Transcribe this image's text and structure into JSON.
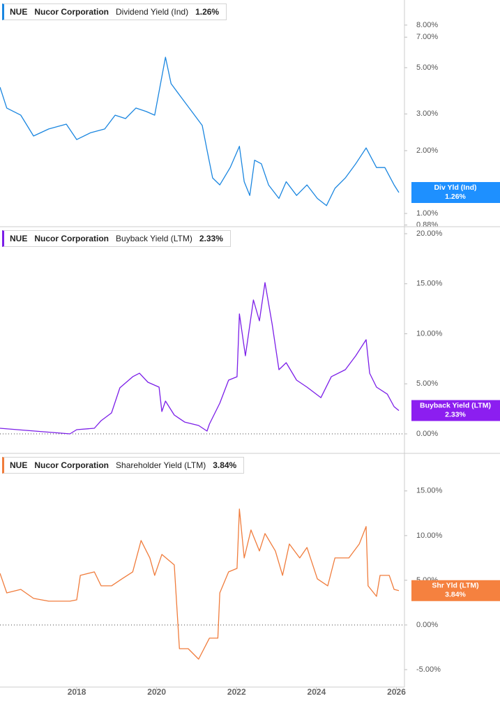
{
  "chart_data": [
    {
      "type": "line",
      "ticker": "NUE",
      "company": "Nucor Corporation",
      "log_scale": true,
      "zero_line": false,
      "xlim": [
        2016.08,
        2026.2
      ],
      "ylim": [
        0.864,
        10.55
      ],
      "yticks": [
        {
          "value": 0.88,
          "label": "0.88%"
        },
        {
          "value": 1,
          "label": "1.00%"
        },
        {
          "value": 2,
          "label": "2.00%"
        },
        {
          "value": 3,
          "label": "3.00%"
        },
        {
          "value": 5,
          "label": "5.00%"
        },
        {
          "value": 7,
          "label": "7.00%"
        },
        {
          "value": 8,
          "label": "8.00%"
        }
      ],
      "x": [
        2016.08,
        2016.25,
        2016.6,
        2016.92,
        2017.3,
        2017.74,
        2018.0,
        2018.35,
        2018.7,
        2018.96,
        2019.22,
        2019.48,
        2019.74,
        2019.95,
        2020.22,
        2020.36,
        2020.62,
        2020.88,
        2021.14,
        2021.26,
        2021.4,
        2021.58,
        2021.84,
        2022.07,
        2022.19,
        2022.33,
        2022.45,
        2022.62,
        2022.8,
        2023.06,
        2023.24,
        2023.5,
        2023.76,
        2024.02,
        2024.25,
        2024.46,
        2024.72,
        2024.98,
        2025.24,
        2025.5,
        2025.71,
        2025.94,
        2026.06
      ],
      "series": [
        {
          "name": "Dividend Yield (Ind)",
          "short_name": "Div Yld (Ind)",
          "current_label": "1.26%",
          "color": "#1a86e0",
          "label_color": "#1e90ff",
          "values": [
            4.03,
            3.2,
            2.96,
            2.35,
            2.54,
            2.68,
            2.26,
            2.44,
            2.54,
            2.96,
            2.85,
            3.2,
            3.08,
            2.96,
            5.61,
            4.19,
            3.59,
            3.08,
            2.64,
            2.01,
            1.48,
            1.37,
            1.66,
            2.1,
            1.42,
            1.22,
            1.8,
            1.73,
            1.37,
            1.18,
            1.42,
            1.22,
            1.37,
            1.18,
            1.09,
            1.32,
            1.48,
            1.73,
            2.06,
            1.66,
            1.66,
            1.37,
            1.26
          ]
        }
      ]
    },
    {
      "type": "line",
      "ticker": "NUE",
      "company": "Nucor Corporation",
      "log_scale": false,
      "zero_line": true,
      "xlim": [
        2016.08,
        2026.2
      ],
      "ylim": [
        -1.95,
        20.7
      ],
      "yticks": [
        {
          "value": 0,
          "label": "0.00%"
        },
        {
          "value": 5,
          "label": "5.00%"
        },
        {
          "value": 10,
          "label": "10.00%"
        },
        {
          "value": 15,
          "label": "15.00%"
        },
        {
          "value": 20,
          "label": "20.00%"
        }
      ],
      "x": [
        2016.08,
        2016.95,
        2017.83,
        2018.0,
        2018.44,
        2018.61,
        2018.87,
        2019.08,
        2019.4,
        2019.57,
        2019.78,
        2020.06,
        2020.13,
        2020.22,
        2020.44,
        2020.7,
        2021.05,
        2021.26,
        2021.32,
        2021.58,
        2021.8,
        2022.01,
        2022.07,
        2022.22,
        2022.42,
        2022.57,
        2022.71,
        2022.89,
        2023.06,
        2023.24,
        2023.5,
        2023.76,
        2024.11,
        2024.37,
        2024.72,
        2024.98,
        2025.24,
        2025.33,
        2025.5,
        2025.77,
        2025.94,
        2026.06
      ],
      "series": [
        {
          "name": "Buyback Yield (LTM)",
          "short_name": "Buyback Yield (LTM)",
          "current_label": "2.33%",
          "color": "#7b1ee8",
          "label_color": "#8c1ef0",
          "values": [
            0.56,
            0.28,
            0,
            0.42,
            0.56,
            1.32,
            2.09,
            4.6,
            5.71,
            6.06,
            5.16,
            4.67,
            2.23,
            3.28,
            1.88,
            1.18,
            0.84,
            0.28,
            0.98,
            3.07,
            5.37,
            5.71,
            11.99,
            7.8,
            13.38,
            11.29,
            15.12,
            10.94,
            6.41,
            7.11,
            5.37,
            4.67,
            3.62,
            5.71,
            6.41,
            7.8,
            9.41,
            6.06,
            4.67,
            3.97,
            2.72,
            2.33
          ]
        }
      ]
    },
    {
      "type": "line",
      "ticker": "NUE",
      "company": "Nucor Corporation",
      "log_scale": false,
      "zero_line": true,
      "xlim": [
        2016.08,
        2026.2
      ],
      "ylim": [
        -6.95,
        19.2
      ],
      "xticks": [
        2018,
        2020,
        2022,
        2024,
        2026
      ],
      "yticks": [
        {
          "value": -5,
          "label": "-5.00%"
        },
        {
          "value": 0,
          "label": "0.00%"
        },
        {
          "value": 5,
          "label": "5.00%"
        },
        {
          "value": 10,
          "label": "10.00%"
        },
        {
          "value": 15,
          "label": "15.00%"
        }
      ],
      "x": [
        2016.08,
        2016.25,
        2016.6,
        2016.92,
        2017.3,
        2017.83,
        2018.0,
        2018.09,
        2018.44,
        2018.61,
        2018.87,
        2019.13,
        2019.4,
        2019.61,
        2019.83,
        2019.95,
        2020.13,
        2020.44,
        2020.57,
        2020.79,
        2021.05,
        2021.32,
        2021.53,
        2021.58,
        2021.8,
        2022.01,
        2022.07,
        2022.19,
        2022.36,
        2022.57,
        2022.71,
        2022.97,
        2023.15,
        2023.32,
        2023.58,
        2023.76,
        2024.02,
        2024.28,
        2024.46,
        2024.81,
        2025.07,
        2025.24,
        2025.29,
        2025.5,
        2025.59,
        2025.82,
        2025.94,
        2026.06
      ],
      "series": [
        {
          "name": "Shareholder Yield (LTM)",
          "short_name": "Shr Yld (LTM)",
          "current_label": "3.84%",
          "color": "#f07c3c",
          "label_color": "#f5813f",
          "values": [
            5.78,
            3.59,
            3.98,
            2.97,
            2.66,
            2.66,
            2.81,
            5.55,
            5.94,
            4.38,
            4.38,
            5.16,
            5.94,
            9.45,
            7.5,
            5.55,
            7.89,
            6.72,
            -2.66,
            -2.66,
            -3.83,
            -1.48,
            -1.48,
            3.59,
            5.94,
            6.33,
            12.97,
            7.5,
            10.63,
            8.28,
            10.23,
            8.28,
            5.55,
            9.06,
            7.5,
            8.67,
            5.16,
            4.38,
            7.5,
            7.5,
            9.06,
            11.02,
            4.38,
            3.2,
            5.55,
            5.55,
            3.98,
            3.84
          ]
        }
      ]
    }
  ]
}
